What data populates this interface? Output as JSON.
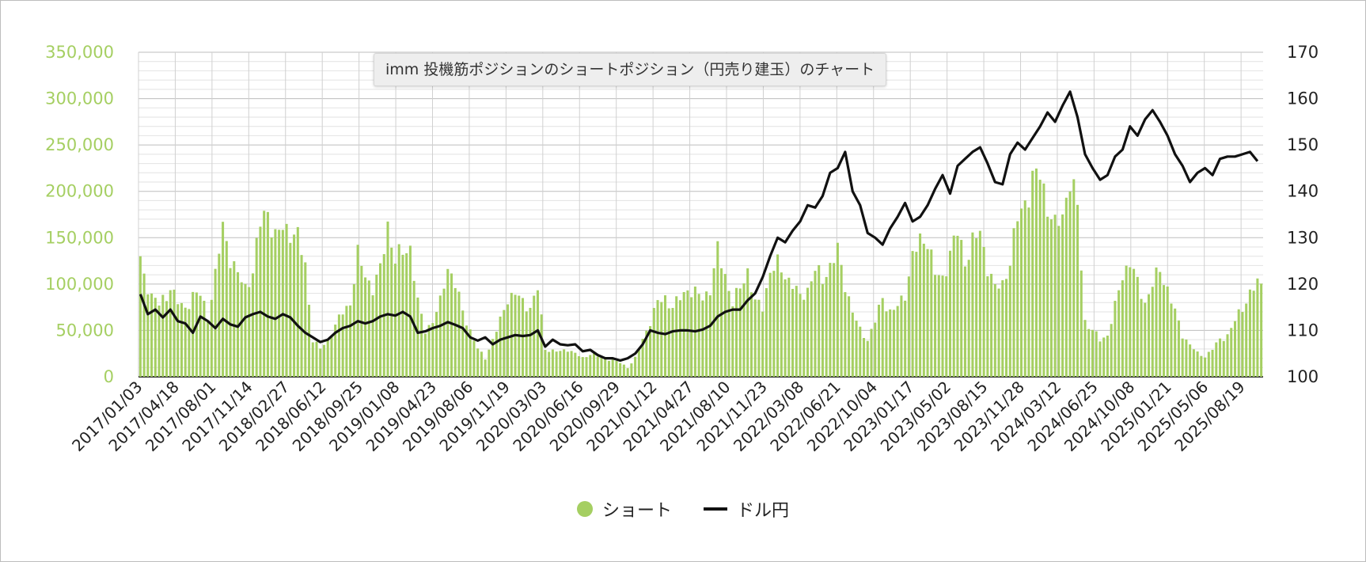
{
  "chart_data": {
    "type": "bar+line",
    "title": "imm 投機筋ポジションのショートポジション（円売り建玉）のチャート",
    "x_tick_labels": [
      "2017/01/03",
      "2017/04/18",
      "2017/08/01",
      "2017/11/14",
      "2018/02/27",
      "2018/06/12",
      "2018/09/25",
      "2019/01/08",
      "2019/04/23",
      "2019/08/06",
      "2019/11/19",
      "2020/03/03",
      "2020/06/16",
      "2020/09/29",
      "2021/01/12",
      "2021/04/27",
      "2021/08/10",
      "2021/11/23",
      "2022/03/08",
      "2022/06/21",
      "2022/10/04",
      "2023/01/17",
      "2023/05/02",
      "2023/08/15",
      "2023/11/28",
      "2024/03/12",
      "2024/06/25",
      "2024/10/08",
      "2025/01/21",
      "2025/05/06",
      "2025/08/19"
    ],
    "y_left": {
      "min": 0,
      "max": 350000,
      "ticks": [
        "0",
        "50,000",
        "100,000",
        "150,000",
        "200,000",
        "250,000",
        "300,000",
        "350,000"
      ]
    },
    "y_right": {
      "min": 100,
      "max": 170,
      "ticks": [
        "100",
        "110",
        "120",
        "130",
        "140",
        "150",
        "160",
        "170"
      ]
    },
    "grid": true,
    "legend_position": "bottom",
    "series": [
      {
        "name": "ショート",
        "kind": "bar",
        "axis": "left",
        "color": "#a5cf62",
        "keypoints": [
          [
            0,
            125000
          ],
          [
            1,
            105000
          ],
          [
            3,
            90000
          ],
          [
            5,
            78000
          ],
          [
            7,
            85000
          ],
          [
            8,
            100000
          ],
          [
            10,
            80000
          ],
          [
            12,
            72000
          ],
          [
            14,
            90000
          ],
          [
            16,
            88000
          ],
          [
            18,
            65000
          ],
          [
            20,
            110000
          ],
          [
            22,
            160000
          ],
          [
            24,
            130000
          ],
          [
            26,
            110000
          ],
          [
            28,
            95000
          ],
          [
            30,
            115000
          ],
          [
            32,
            165000
          ],
          [
            34,
            180000
          ],
          [
            36,
            150000
          ],
          [
            38,
            160000
          ],
          [
            40,
            158000
          ],
          [
            42,
            150000
          ],
          [
            44,
            120000
          ],
          [
            46,
            40000
          ],
          [
            48,
            30000
          ],
          [
            50,
            40000
          ],
          [
            52,
            55000
          ],
          [
            54,
            70000
          ],
          [
            56,
            80000
          ],
          [
            58,
            130000
          ],
          [
            60,
            110000
          ],
          [
            62,
            95000
          ],
          [
            64,
            115000
          ],
          [
            66,
            165000
          ],
          [
            68,
            125000
          ],
          [
            70,
            135000
          ],
          [
            72,
            140000
          ],
          [
            74,
            80000
          ],
          [
            76,
            50000
          ],
          [
            78,
            60000
          ],
          [
            80,
            80000
          ],
          [
            82,
            120000
          ],
          [
            84,
            100000
          ],
          [
            86,
            70000
          ],
          [
            88,
            50000
          ],
          [
            90,
            30000
          ],
          [
            92,
            20000
          ],
          [
            94,
            40000
          ],
          [
            96,
            60000
          ],
          [
            98,
            85000
          ],
          [
            100,
            90000
          ],
          [
            102,
            80000
          ],
          [
            104,
            75000
          ],
          [
            106,
            95000
          ],
          [
            108,
            30000
          ],
          [
            110,
            28000
          ],
          [
            112,
            27000
          ],
          [
            114,
            30000
          ],
          [
            116,
            25000
          ],
          [
            118,
            20000
          ],
          [
            120,
            25000
          ],
          [
            122,
            22000
          ],
          [
            124,
            20000
          ],
          [
            126,
            18000
          ],
          [
            128,
            15000
          ],
          [
            130,
            10000
          ],
          [
            132,
            20000
          ],
          [
            134,
            40000
          ],
          [
            136,
            60000
          ],
          [
            138,
            80000
          ],
          [
            140,
            85000
          ],
          [
            142,
            75000
          ],
          [
            144,
            85000
          ],
          [
            146,
            95000
          ],
          [
            148,
            90000
          ],
          [
            150,
            85000
          ],
          [
            152,
            95000
          ],
          [
            154,
            135000
          ],
          [
            156,
            110000
          ],
          [
            158,
            80000
          ],
          [
            160,
            95000
          ],
          [
            162,
            115000
          ],
          [
            164,
            80000
          ],
          [
            166,
            75000
          ],
          [
            168,
            115000
          ],
          [
            170,
            120000
          ],
          [
            172,
            110000
          ],
          [
            174,
            100000
          ],
          [
            176,
            85000
          ],
          [
            178,
            95000
          ],
          [
            180,
            115000
          ],
          [
            182,
            105000
          ],
          [
            184,
            120000
          ],
          [
            186,
            135000
          ],
          [
            188,
            100000
          ],
          [
            190,
            70000
          ],
          [
            192,
            50000
          ],
          [
            194,
            40000
          ],
          [
            196,
            60000
          ],
          [
            198,
            85000
          ],
          [
            200,
            70000
          ],
          [
            202,
            75000
          ],
          [
            204,
            90000
          ],
          [
            206,
            130000
          ],
          [
            208,
            145000
          ],
          [
            210,
            150000
          ],
          [
            212,
            110000
          ],
          [
            214,
            105000
          ],
          [
            216,
            135000
          ],
          [
            218,
            155000
          ],
          [
            220,
            125000
          ],
          [
            222,
            145000
          ],
          [
            224,
            155000
          ],
          [
            226,
            120000
          ],
          [
            228,
            95000
          ],
          [
            230,
            100000
          ],
          [
            232,
            125000
          ],
          [
            234,
            170000
          ],
          [
            236,
            190000
          ],
          [
            238,
            210000
          ],
          [
            240,
            220000
          ],
          [
            242,
            185000
          ],
          [
            244,
            160000
          ],
          [
            246,
            175000
          ],
          [
            248,
            215000
          ],
          [
            250,
            180000
          ],
          [
            252,
            60000
          ],
          [
            254,
            50000
          ],
          [
            256,
            40000
          ],
          [
            258,
            45000
          ],
          [
            260,
            75000
          ],
          [
            262,
            110000
          ],
          [
            264,
            125000
          ],
          [
            266,
            100000
          ],
          [
            268,
            80000
          ],
          [
            270,
            100000
          ],
          [
            272,
            115000
          ],
          [
            274,
            95000
          ],
          [
            276,
            70000
          ],
          [
            278,
            45000
          ],
          [
            280,
            35000
          ],
          [
            282,
            25000
          ],
          [
            284,
            22000
          ],
          [
            286,
            30000
          ],
          [
            288,
            40000
          ],
          [
            290,
            45000
          ],
          [
            292,
            60000
          ],
          [
            294,
            75000
          ],
          [
            296,
            90000
          ],
          [
            298,
            100000
          ]
        ]
      },
      {
        "name": "ドル円",
        "kind": "line",
        "axis": "right",
        "color": "#111111",
        "points": [
          [
            0,
            117.8
          ],
          [
            2,
            113.5
          ],
          [
            4,
            114.5
          ],
          [
            6,
            112.8
          ],
          [
            8,
            114.5
          ],
          [
            10,
            112.0
          ],
          [
            12,
            111.5
          ],
          [
            14,
            109.5
          ],
          [
            16,
            113.0
          ],
          [
            18,
            112.0
          ],
          [
            20,
            110.5
          ],
          [
            22,
            112.5
          ],
          [
            24,
            111.3
          ],
          [
            26,
            110.8
          ],
          [
            28,
            112.8
          ],
          [
            30,
            113.5
          ],
          [
            32,
            114.0
          ],
          [
            34,
            113.0
          ],
          [
            36,
            112.5
          ],
          [
            38,
            113.5
          ],
          [
            40,
            112.8
          ],
          [
            42,
            111.0
          ],
          [
            44,
            109.5
          ],
          [
            46,
            108.5
          ],
          [
            48,
            107.5
          ],
          [
            50,
            108.0
          ],
          [
            52,
            109.5
          ],
          [
            54,
            110.5
          ],
          [
            56,
            111.0
          ],
          [
            58,
            112.0
          ],
          [
            60,
            111.5
          ],
          [
            62,
            112.0
          ],
          [
            64,
            113.0
          ],
          [
            66,
            113.5
          ],
          [
            68,
            113.2
          ],
          [
            70,
            114.0
          ],
          [
            72,
            113.0
          ],
          [
            74,
            109.5
          ],
          [
            76,
            109.8
          ],
          [
            78,
            110.5
          ],
          [
            80,
            111.0
          ],
          [
            82,
            111.8
          ],
          [
            84,
            111.2
          ],
          [
            86,
            110.5
          ],
          [
            88,
            108.5
          ],
          [
            90,
            107.8
          ],
          [
            92,
            108.5
          ],
          [
            94,
            107.0
          ],
          [
            96,
            108.0
          ],
          [
            98,
            108.5
          ],
          [
            100,
            109.0
          ],
          [
            102,
            108.8
          ],
          [
            104,
            109.0
          ],
          [
            106,
            110.0
          ],
          [
            108,
            106.5
          ],
          [
            110,
            108.0
          ],
          [
            112,
            107.0
          ],
          [
            114,
            106.8
          ],
          [
            116,
            107.0
          ],
          [
            118,
            105.5
          ],
          [
            120,
            105.8
          ],
          [
            122,
            104.7
          ],
          [
            124,
            104.0
          ],
          [
            126,
            104.0
          ],
          [
            128,
            103.5
          ],
          [
            130,
            104.0
          ],
          [
            132,
            105.0
          ],
          [
            134,
            107.0
          ],
          [
            136,
            110.0
          ],
          [
            138,
            109.5
          ],
          [
            140,
            109.2
          ],
          [
            142,
            109.8
          ],
          [
            144,
            110.0
          ],
          [
            146,
            110.0
          ],
          [
            148,
            109.8
          ],
          [
            150,
            110.2
          ],
          [
            152,
            111.0
          ],
          [
            154,
            113.0
          ],
          [
            156,
            114.0
          ],
          [
            158,
            114.5
          ],
          [
            160,
            114.5
          ],
          [
            162,
            116.5
          ],
          [
            164,
            118.0
          ],
          [
            166,
            121.5
          ],
          [
            168,
            126.0
          ],
          [
            170,
            130.0
          ],
          [
            172,
            129.0
          ],
          [
            174,
            131.5
          ],
          [
            176,
            133.5
          ],
          [
            178,
            137.0
          ],
          [
            180,
            136.5
          ],
          [
            182,
            139.0
          ],
          [
            184,
            144.0
          ],
          [
            186,
            145.0
          ],
          [
            188,
            148.5
          ],
          [
            190,
            140.0
          ],
          [
            192,
            137.0
          ],
          [
            194,
            131.0
          ],
          [
            196,
            130.0
          ],
          [
            198,
            128.5
          ],
          [
            200,
            132.0
          ],
          [
            202,
            134.5
          ],
          [
            204,
            137.5
          ],
          [
            206,
            133.5
          ],
          [
            208,
            134.5
          ],
          [
            210,
            137.0
          ],
          [
            212,
            140.5
          ],
          [
            214,
            143.5
          ],
          [
            216,
            139.5
          ],
          [
            218,
            145.5
          ],
          [
            220,
            147.0
          ],
          [
            222,
            148.5
          ],
          [
            224,
            149.5
          ],
          [
            226,
            146.0
          ],
          [
            228,
            142.0
          ],
          [
            230,
            141.5
          ],
          [
            232,
            148.0
          ],
          [
            234,
            150.5
          ],
          [
            236,
            149.0
          ],
          [
            238,
            151.5
          ],
          [
            240,
            154.0
          ],
          [
            242,
            157.0
          ],
          [
            244,
            155.0
          ],
          [
            246,
            158.5
          ],
          [
            248,
            161.5
          ],
          [
            250,
            156.0
          ],
          [
            252,
            148.0
          ],
          [
            254,
            145.0
          ],
          [
            256,
            142.5
          ],
          [
            258,
            143.5
          ],
          [
            260,
            147.5
          ],
          [
            262,
            149.0
          ],
          [
            264,
            154.0
          ],
          [
            266,
            152.0
          ],
          [
            268,
            155.5
          ],
          [
            270,
            157.5
          ],
          [
            272,
            155.0
          ],
          [
            274,
            152.0
          ],
          [
            276,
            148.0
          ],
          [
            278,
            145.5
          ],
          [
            280,
            142.0
          ],
          [
            282,
            144.0
          ],
          [
            284,
            145.0
          ],
          [
            286,
            143.5
          ],
          [
            288,
            147.0
          ],
          [
            290,
            147.5
          ],
          [
            292,
            147.5
          ],
          [
            294,
            148.0
          ],
          [
            296,
            148.5
          ],
          [
            298,
            146.5
          ]
        ]
      }
    ],
    "bar_count": 300
  },
  "legend": {
    "items": [
      {
        "label": "ショート",
        "color": "#a5cf62"
      },
      {
        "label": "ドル円",
        "color": "#111111"
      }
    ]
  }
}
